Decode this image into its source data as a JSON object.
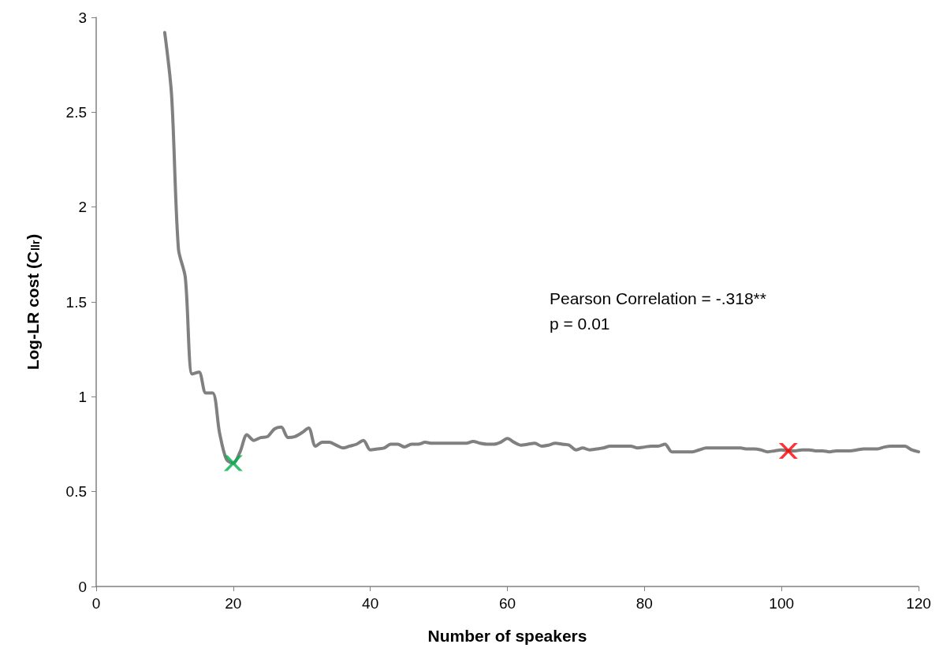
{
  "chart_data": {
    "type": "line",
    "xlabel": "Number of speakers",
    "ylabel": "Log-LR cost (C$_{llr}$)",
    "annotations": [
      "Pearson Correlation = -.318**",
      "p = 0.01"
    ],
    "xlim": [
      0,
      120
    ],
    "xticks": [
      0,
      20,
      40,
      60,
      80,
      100,
      120
    ],
    "ylim": [
      0,
      3
    ],
    "yticks": [
      0,
      0.5,
      1,
      1.5,
      2,
      2.5,
      3
    ],
    "grid": false,
    "line_style": "solid",
    "series": [
      {
        "color": "#808080",
        "marker": "none",
        "x": [
          10,
          11,
          12,
          13,
          14,
          15,
          16,
          17,
          18,
          19,
          20,
          21,
          22,
          23,
          24,
          25,
          26,
          27,
          28,
          29,
          30,
          31,
          32,
          33,
          34,
          35,
          36,
          37,
          38,
          39,
          40,
          41,
          42,
          43,
          44,
          45,
          46,
          47,
          48,
          49,
          50,
          51,
          52,
          53,
          54,
          55,
          56,
          57,
          58,
          59,
          60,
          61,
          62,
          63,
          64,
          65,
          66,
          67,
          68,
          69,
          70,
          71,
          72,
          73,
          74,
          75,
          76,
          77,
          78,
          79,
          80,
          81,
          82,
          83,
          84,
          85,
          86,
          87,
          88,
          89,
          90,
          91,
          92,
          93,
          94,
          95,
          96,
          97,
          98,
          99,
          100,
          101,
          102,
          103,
          104,
          105,
          106,
          107,
          108,
          109,
          110,
          111,
          112,
          113,
          114,
          115,
          116,
          117,
          118,
          119,
          120
        ],
        "values": [
          2.92,
          2.59,
          1.78,
          1.63,
          1.12,
          1.13,
          1.02,
          1.02,
          0.81,
          0.67,
          0.65,
          0.71,
          0.8,
          0.77,
          0.785,
          0.79,
          0.83,
          0.84,
          0.785,
          0.79,
          0.81,
          0.835,
          0.74,
          0.76,
          0.76,
          0.745,
          0.73,
          0.74,
          0.75,
          0.77,
          0.72,
          0.725,
          0.73,
          0.75,
          0.75,
          0.735,
          0.75,
          0.75,
          0.76,
          0.755,
          0.755,
          0.755,
          0.755,
          0.755,
          0.755,
          0.765,
          0.755,
          0.75,
          0.75,
          0.76,
          0.78,
          0.76,
          0.745,
          0.75,
          0.755,
          0.74,
          0.745,
          0.755,
          0.75,
          0.745,
          0.72,
          0.73,
          0.72,
          0.725,
          0.73,
          0.74,
          0.74,
          0.74,
          0.74,
          0.73,
          0.735,
          0.74,
          0.74,
          0.75,
          0.71,
          0.71,
          0.71,
          0.71,
          0.72,
          0.73,
          0.73,
          0.73,
          0.73,
          0.73,
          0.73,
          0.725,
          0.725,
          0.72,
          0.71,
          0.715,
          0.72,
          0.715,
          0.715,
          0.72,
          0.72,
          0.715,
          0.715,
          0.71,
          0.715,
          0.715,
          0.715,
          0.72,
          0.725,
          0.725,
          0.725,
          0.735,
          0.74,
          0.74,
          0.74,
          0.72,
          0.71
        ]
      },
      {
        "type": "scatter",
        "color": "#00b050",
        "marker": "cross",
        "x": [
          20
        ],
        "values": [
          0.65
        ]
      },
      {
        "type": "scatter",
        "color": "#ff0000",
        "marker": "cross",
        "x": [
          101
        ],
        "values": [
          0.715
        ]
      }
    ]
  }
}
